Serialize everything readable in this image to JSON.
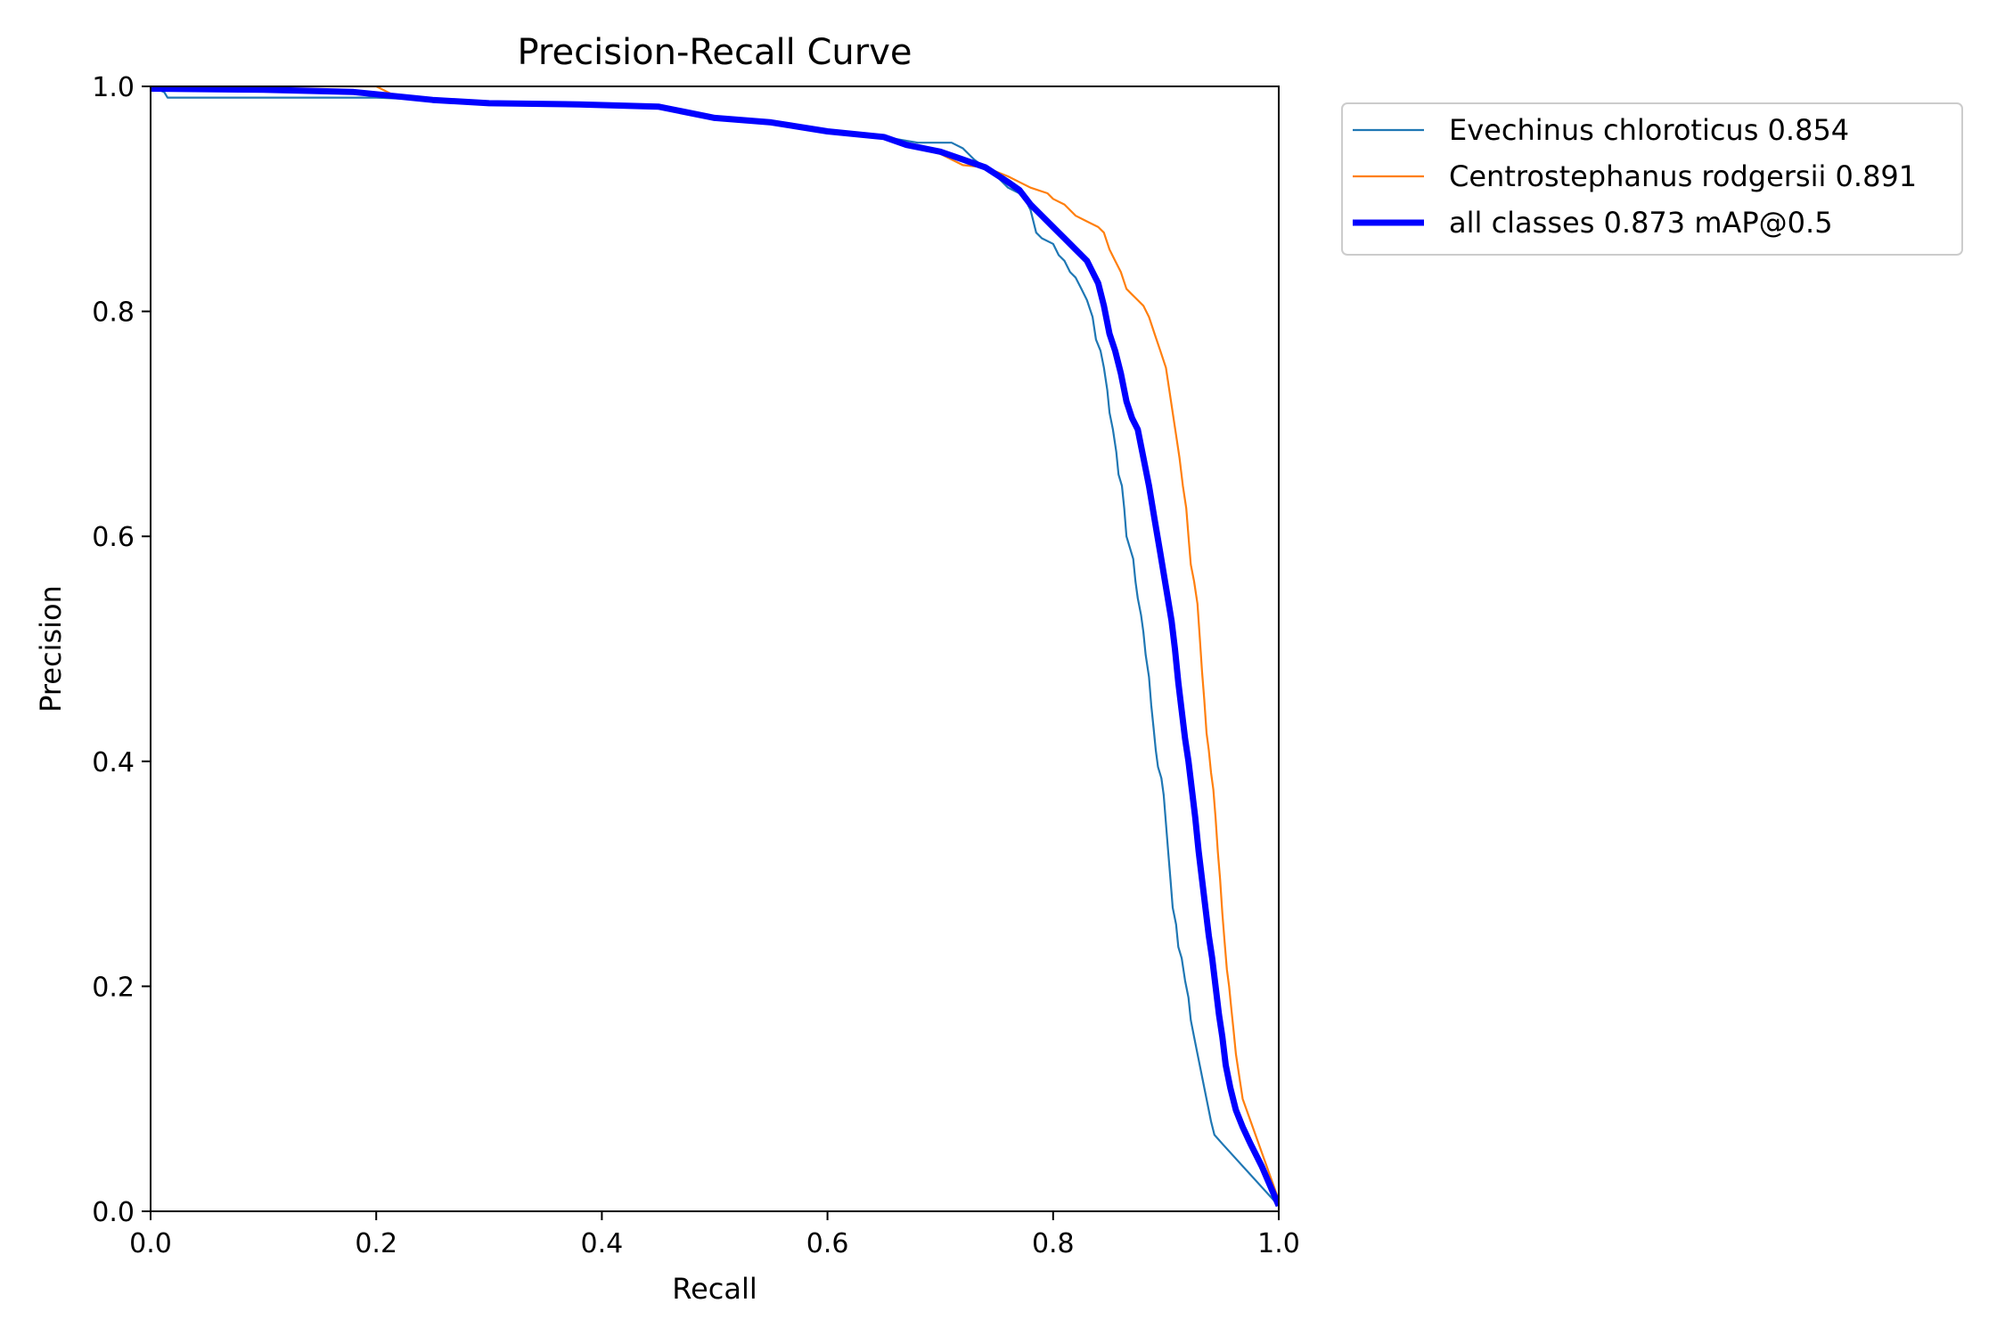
{
  "chart_data": {
    "type": "line",
    "title": "Precision-Recall Curve",
    "xlabel": "Recall",
    "ylabel": "Precision",
    "xlim": [
      0.0,
      1.0
    ],
    "ylim": [
      0.0,
      1.0
    ],
    "xticks": [
      "0.0",
      "0.2",
      "0.4",
      "0.6",
      "0.8",
      "1.0"
    ],
    "yticks": [
      "0.0",
      "0.2",
      "0.4",
      "0.6",
      "0.8",
      "1.0"
    ],
    "grid": false,
    "legend_position": "outside-top-right",
    "series": [
      {
        "name": "Evechinus chloroticus 0.854",
        "color": "#1f77b4",
        "width": "thin",
        "points": [
          [
            0.0,
            1.0
          ],
          [
            0.012,
            0.995
          ],
          [
            0.015,
            0.99
          ],
          [
            0.2,
            0.99
          ],
          [
            0.25,
            0.988
          ],
          [
            0.3,
            0.985
          ],
          [
            0.38,
            0.984
          ],
          [
            0.45,
            0.982
          ],
          [
            0.5,
            0.972
          ],
          [
            0.55,
            0.968
          ],
          [
            0.6,
            0.96
          ],
          [
            0.65,
            0.955
          ],
          [
            0.68,
            0.95
          ],
          [
            0.71,
            0.95
          ],
          [
            0.72,
            0.945
          ],
          [
            0.73,
            0.935
          ],
          [
            0.75,
            0.92
          ],
          [
            0.76,
            0.91
          ],
          [
            0.77,
            0.905
          ],
          [
            0.775,
            0.9
          ],
          [
            0.78,
            0.89
          ],
          [
            0.785,
            0.87
          ],
          [
            0.79,
            0.865
          ],
          [
            0.8,
            0.86
          ],
          [
            0.805,
            0.85
          ],
          [
            0.81,
            0.845
          ],
          [
            0.815,
            0.835
          ],
          [
            0.82,
            0.83
          ],
          [
            0.825,
            0.82
          ],
          [
            0.83,
            0.81
          ],
          [
            0.835,
            0.795
          ],
          [
            0.838,
            0.775
          ],
          [
            0.842,
            0.765
          ],
          [
            0.845,
            0.75
          ],
          [
            0.848,
            0.73
          ],
          [
            0.85,
            0.71
          ],
          [
            0.853,
            0.695
          ],
          [
            0.856,
            0.675
          ],
          [
            0.858,
            0.655
          ],
          [
            0.861,
            0.645
          ],
          [
            0.863,
            0.625
          ],
          [
            0.865,
            0.6
          ],
          [
            0.868,
            0.59
          ],
          [
            0.871,
            0.58
          ],
          [
            0.873,
            0.56
          ],
          [
            0.875,
            0.545
          ],
          [
            0.878,
            0.53
          ],
          [
            0.88,
            0.515
          ],
          [
            0.882,
            0.495
          ],
          [
            0.885,
            0.475
          ],
          [
            0.887,
            0.45
          ],
          [
            0.889,
            0.43
          ],
          [
            0.891,
            0.41
          ],
          [
            0.893,
            0.395
          ],
          [
            0.896,
            0.385
          ],
          [
            0.898,
            0.37
          ],
          [
            0.9,
            0.345
          ],
          [
            0.902,
            0.32
          ],
          [
            0.904,
            0.295
          ],
          [
            0.906,
            0.27
          ],
          [
            0.909,
            0.255
          ],
          [
            0.911,
            0.235
          ],
          [
            0.914,
            0.225
          ],
          [
            0.917,
            0.205
          ],
          [
            0.92,
            0.19
          ],
          [
            0.922,
            0.17
          ],
          [
            0.925,
            0.155
          ],
          [
            0.928,
            0.14
          ],
          [
            0.931,
            0.125
          ],
          [
            0.934,
            0.11
          ],
          [
            0.937,
            0.095
          ],
          [
            0.94,
            0.08
          ],
          [
            0.943,
            0.068
          ],
          [
            0.95,
            0.06
          ],
          [
            1.0,
            0.005
          ]
        ]
      },
      {
        "name": "Centrostephanus rodgersii 0.891",
        "color": "#ff7f0e",
        "width": "thin",
        "points": [
          [
            0.0,
            1.0
          ],
          [
            0.2,
            1.0
          ],
          [
            0.21,
            0.995
          ],
          [
            0.22,
            0.99
          ],
          [
            0.25,
            0.988
          ],
          [
            0.3,
            0.985
          ],
          [
            0.38,
            0.984
          ],
          [
            0.45,
            0.982
          ],
          [
            0.5,
            0.972
          ],
          [
            0.55,
            0.968
          ],
          [
            0.6,
            0.96
          ],
          [
            0.65,
            0.955
          ],
          [
            0.68,
            0.945
          ],
          [
            0.7,
            0.94
          ],
          [
            0.72,
            0.93
          ],
          [
            0.74,
            0.928
          ],
          [
            0.76,
            0.92
          ],
          [
            0.78,
            0.91
          ],
          [
            0.795,
            0.905
          ],
          [
            0.8,
            0.9
          ],
          [
            0.81,
            0.895
          ],
          [
            0.82,
            0.885
          ],
          [
            0.83,
            0.88
          ],
          [
            0.84,
            0.875
          ],
          [
            0.845,
            0.87
          ],
          [
            0.85,
            0.855
          ],
          [
            0.855,
            0.845
          ],
          [
            0.86,
            0.835
          ],
          [
            0.865,
            0.82
          ],
          [
            0.87,
            0.815
          ],
          [
            0.875,
            0.81
          ],
          [
            0.88,
            0.805
          ],
          [
            0.885,
            0.795
          ],
          [
            0.89,
            0.78
          ],
          [
            0.895,
            0.765
          ],
          [
            0.9,
            0.75
          ],
          [
            0.903,
            0.73
          ],
          [
            0.906,
            0.71
          ],
          [
            0.909,
            0.69
          ],
          [
            0.912,
            0.67
          ],
          [
            0.915,
            0.645
          ],
          [
            0.918,
            0.625
          ],
          [
            0.92,
            0.6
          ],
          [
            0.922,
            0.575
          ],
          [
            0.925,
            0.56
          ],
          [
            0.928,
            0.54
          ],
          [
            0.93,
            0.51
          ],
          [
            0.932,
            0.48
          ],
          [
            0.934,
            0.455
          ],
          [
            0.936,
            0.425
          ],
          [
            0.938,
            0.41
          ],
          [
            0.94,
            0.39
          ],
          [
            0.942,
            0.375
          ],
          [
            0.944,
            0.35
          ],
          [
            0.946,
            0.32
          ],
          [
            0.948,
            0.295
          ],
          [
            0.95,
            0.265
          ],
          [
            0.952,
            0.24
          ],
          [
            0.954,
            0.215
          ],
          [
            0.956,
            0.2
          ],
          [
            0.958,
            0.18
          ],
          [
            0.96,
            0.16
          ],
          [
            0.962,
            0.14
          ],
          [
            0.965,
            0.12
          ],
          [
            0.968,
            0.1
          ],
          [
            1.0,
            0.01
          ]
        ]
      },
      {
        "name": "all classes 0.873 mAP@0.5",
        "color": "#0000ff",
        "width": "thick",
        "points": [
          [
            0.0,
            0.998
          ],
          [
            0.1,
            0.997
          ],
          [
            0.18,
            0.995
          ],
          [
            0.2,
            0.993
          ],
          [
            0.25,
            0.988
          ],
          [
            0.3,
            0.985
          ],
          [
            0.38,
            0.984
          ],
          [
            0.45,
            0.982
          ],
          [
            0.5,
            0.972
          ],
          [
            0.55,
            0.968
          ],
          [
            0.6,
            0.96
          ],
          [
            0.65,
            0.955
          ],
          [
            0.67,
            0.948
          ],
          [
            0.7,
            0.942
          ],
          [
            0.72,
            0.935
          ],
          [
            0.74,
            0.928
          ],
          [
            0.76,
            0.915
          ],
          [
            0.77,
            0.908
          ],
          [
            0.78,
            0.895
          ],
          [
            0.79,
            0.885
          ],
          [
            0.8,
            0.875
          ],
          [
            0.81,
            0.865
          ],
          [
            0.82,
            0.855
          ],
          [
            0.83,
            0.845
          ],
          [
            0.835,
            0.835
          ],
          [
            0.84,
            0.825
          ],
          [
            0.845,
            0.805
          ],
          [
            0.85,
            0.78
          ],
          [
            0.855,
            0.765
          ],
          [
            0.86,
            0.745
          ],
          [
            0.865,
            0.72
          ],
          [
            0.87,
            0.705
          ],
          [
            0.875,
            0.695
          ],
          [
            0.88,
            0.67
          ],
          [
            0.885,
            0.645
          ],
          [
            0.89,
            0.615
          ],
          [
            0.895,
            0.585
          ],
          [
            0.9,
            0.555
          ],
          [
            0.905,
            0.525
          ],
          [
            0.908,
            0.5
          ],
          [
            0.911,
            0.47
          ],
          [
            0.914,
            0.445
          ],
          [
            0.917,
            0.42
          ],
          [
            0.92,
            0.4
          ],
          [
            0.923,
            0.375
          ],
          [
            0.926,
            0.35
          ],
          [
            0.929,
            0.32
          ],
          [
            0.932,
            0.295
          ],
          [
            0.935,
            0.27
          ],
          [
            0.938,
            0.245
          ],
          [
            0.941,
            0.225
          ],
          [
            0.944,
            0.2
          ],
          [
            0.947,
            0.175
          ],
          [
            0.95,
            0.155
          ],
          [
            0.953,
            0.13
          ],
          [
            0.957,
            0.11
          ],
          [
            0.962,
            0.09
          ],
          [
            0.968,
            0.075
          ],
          [
            0.975,
            0.06
          ],
          [
            0.985,
            0.04
          ],
          [
            1.0,
            0.005
          ]
        ]
      }
    ]
  }
}
